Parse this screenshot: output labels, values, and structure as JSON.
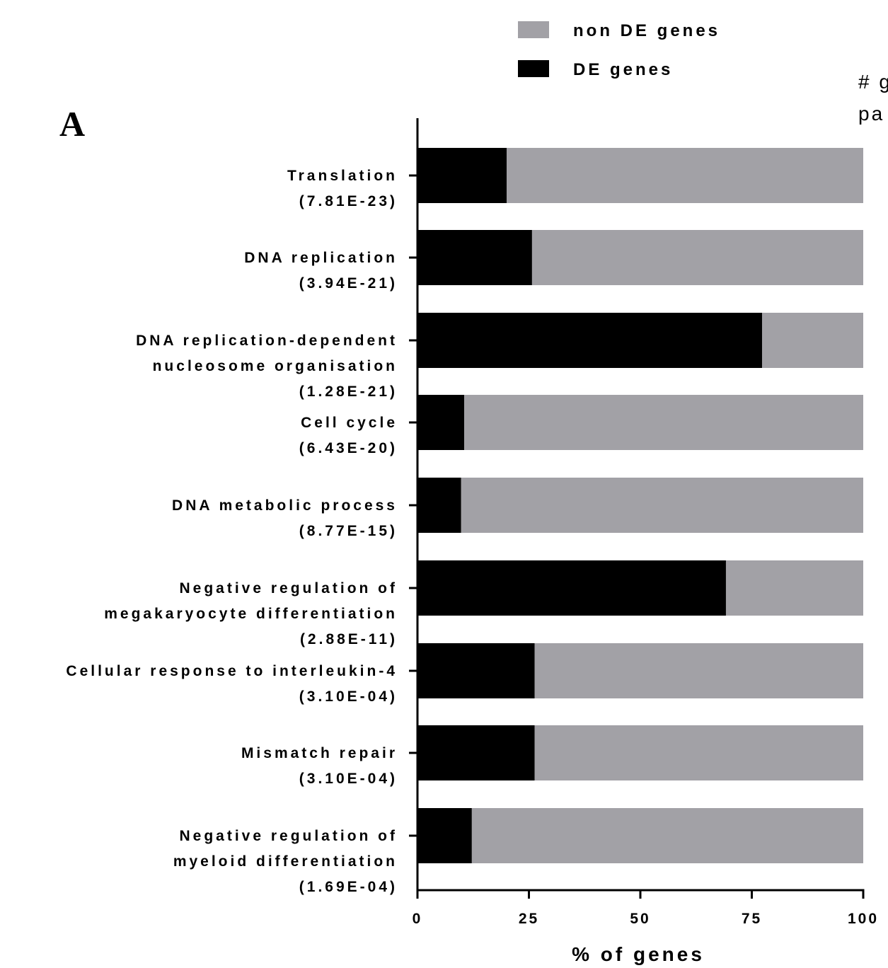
{
  "panel_label": "A",
  "side_text": [
    "# g",
    "pa"
  ],
  "chart_data": {
    "type": "bar",
    "orientation": "horizontal",
    "stacked": true,
    "categories": [
      [
        "Translation",
        "(7.81E-23)"
      ],
      [
        "DNA replication",
        "(3.94E-21)"
      ],
      [
        "DNA replication-dependent",
        "nucleosome organisation",
        "(1.28E-21)"
      ],
      [
        "Cell cycle",
        "(6.43E-20)"
      ],
      [
        "DNA metabolic process",
        "(8.77E-15)"
      ],
      [
        "Negative regulation of",
        "megakaryocyte differentiation",
        "(2.88E-11)"
      ],
      [
        "Cellular response to interleukin-4",
        "(3.10E-04)"
      ],
      [
        "Mismatch repair",
        "(3.10E-04)"
      ],
      [
        "Negative regulation of",
        "myeloid differentiation",
        "(1.69E-04)"
      ]
    ],
    "series": [
      {
        "name": "DE genes",
        "color": "#000000",
        "values": [
          20,
          25.7,
          77.3,
          10.5,
          9.8,
          69.2,
          26.3,
          26.3,
          12.2
        ]
      },
      {
        "name": "non DE genes",
        "color": "#a2a1a6",
        "values": [
          80,
          74.3,
          22.7,
          89.5,
          90.2,
          30.8,
          73.7,
          73.7,
          87.8
        ]
      }
    ],
    "xlabel": "% of genes",
    "ylabel": "",
    "xlim": [
      0,
      100
    ],
    "xticks": [
      0,
      25,
      50,
      75,
      100
    ],
    "xtick_labels": [
      "0",
      "25",
      "50",
      "75",
      "100"
    ],
    "legend": {
      "placement": "top",
      "entries": [
        {
          "label": "non DE genes",
          "color": "#a2a1a6"
        },
        {
          "label": "DE genes",
          "color": "#000000"
        }
      ]
    },
    "grid": false
  }
}
